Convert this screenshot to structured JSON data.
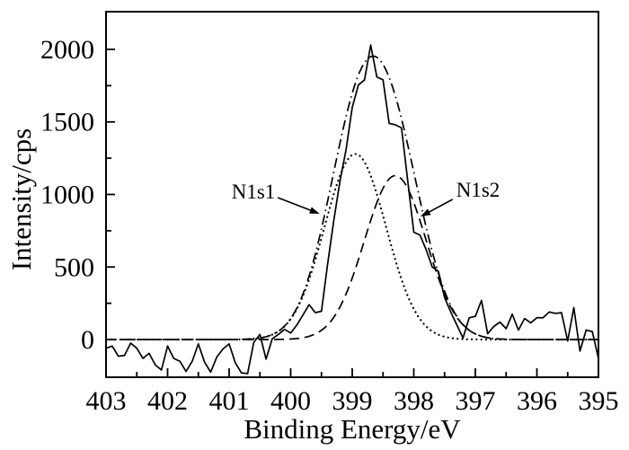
{
  "figure": {
    "background_color": "#ffffff",
    "ink_color": "#000000",
    "description": "XPS N1s core-level spectrum with two fitted Gaussian components"
  },
  "chart_data": {
    "type": "line",
    "title": "",
    "xlabel": "Binding Energy/eV",
    "ylabel": "Intensity/cps",
    "x_unit": "eV",
    "y_unit": "cps",
    "xlim": [
      403,
      395
    ],
    "ylim": [
      -260,
      2260
    ],
    "x_axis_reversed": true,
    "grid": false,
    "legend": "none",
    "x_major_ticks": [
      403,
      402,
      401,
      400,
      399,
      398,
      397,
      396,
      395
    ],
    "x_minor_ticks": [
      402.5,
      401.5,
      400.5,
      399.5,
      398.5,
      397.5,
      396.5,
      395.5
    ],
    "y_major_ticks": [
      0,
      500,
      1000,
      1500,
      2000
    ],
    "y_minor_ticks": [
      250,
      750,
      1250,
      1750
    ],
    "series": [
      {
        "name": "n1s1-component",
        "label": "N1s1 fitted component",
        "line_style": "dotted",
        "peak": {
          "center_ev": 398.95,
          "amplitude_cps": 1280,
          "sigma_ev": 0.5
        }
      },
      {
        "name": "n1s2-component",
        "label": "N1s2 fitted component",
        "line_style": "dashed",
        "peak": {
          "center_ev": 398.3,
          "amplitude_cps": 1130,
          "sigma_ev": 0.5
        }
      },
      {
        "name": "fit-envelope",
        "label": "fit envelope (sum of components)",
        "line_style": "dash-dot",
        "sum_of": [
          "n1s1-component",
          "n1s2-component"
        ]
      },
      {
        "name": "raw-spectrum",
        "label": "measured N1s spectrum",
        "line_style": "solid",
        "x_start": 403,
        "x_step": -0.1,
        "values": [
          -60,
          -45,
          -115,
          -110,
          -25,
          -60,
          -130,
          -95,
          -175,
          -210,
          -45,
          -130,
          -150,
          -220,
          -150,
          -30,
          -155,
          -225,
          -120,
          -65,
          -30,
          -160,
          -230,
          -235,
          -20,
          35,
          -135,
          5,
          35,
          70,
          45,
          100,
          170,
          240,
          185,
          195,
          520,
          820,
          1090,
          1310,
          1600,
          1755,
          1790,
          2030,
          1810,
          1790,
          1490,
          1480,
          1460,
          1100,
          740,
          720,
          620,
          500,
          470,
          290,
          190,
          100,
          10,
          150,
          160,
          270,
          40,
          90,
          120,
          75,
          175,
          65,
          145,
          115,
          150,
          150,
          190,
          180,
          185,
          -10,
          220,
          -80,
          65,
          55,
          -130
        ]
      }
    ],
    "annotations": [
      {
        "label": "N1s1",
        "text_pos": {
          "ev": 400.62,
          "cps": 1015
        },
        "arrow": {
          "from": {
            "ev": 400.21,
            "cps": 978
          },
          "to": {
            "ev": 399.53,
            "cps": 867
          }
        }
      },
      {
        "label": "N1s2",
        "text_pos": {
          "ev": 396.96,
          "cps": 1034
        },
        "arrow": {
          "from": {
            "ev": 397.37,
            "cps": 966
          },
          "to": {
            "ev": 397.89,
            "cps": 848
          }
        }
      }
    ]
  }
}
